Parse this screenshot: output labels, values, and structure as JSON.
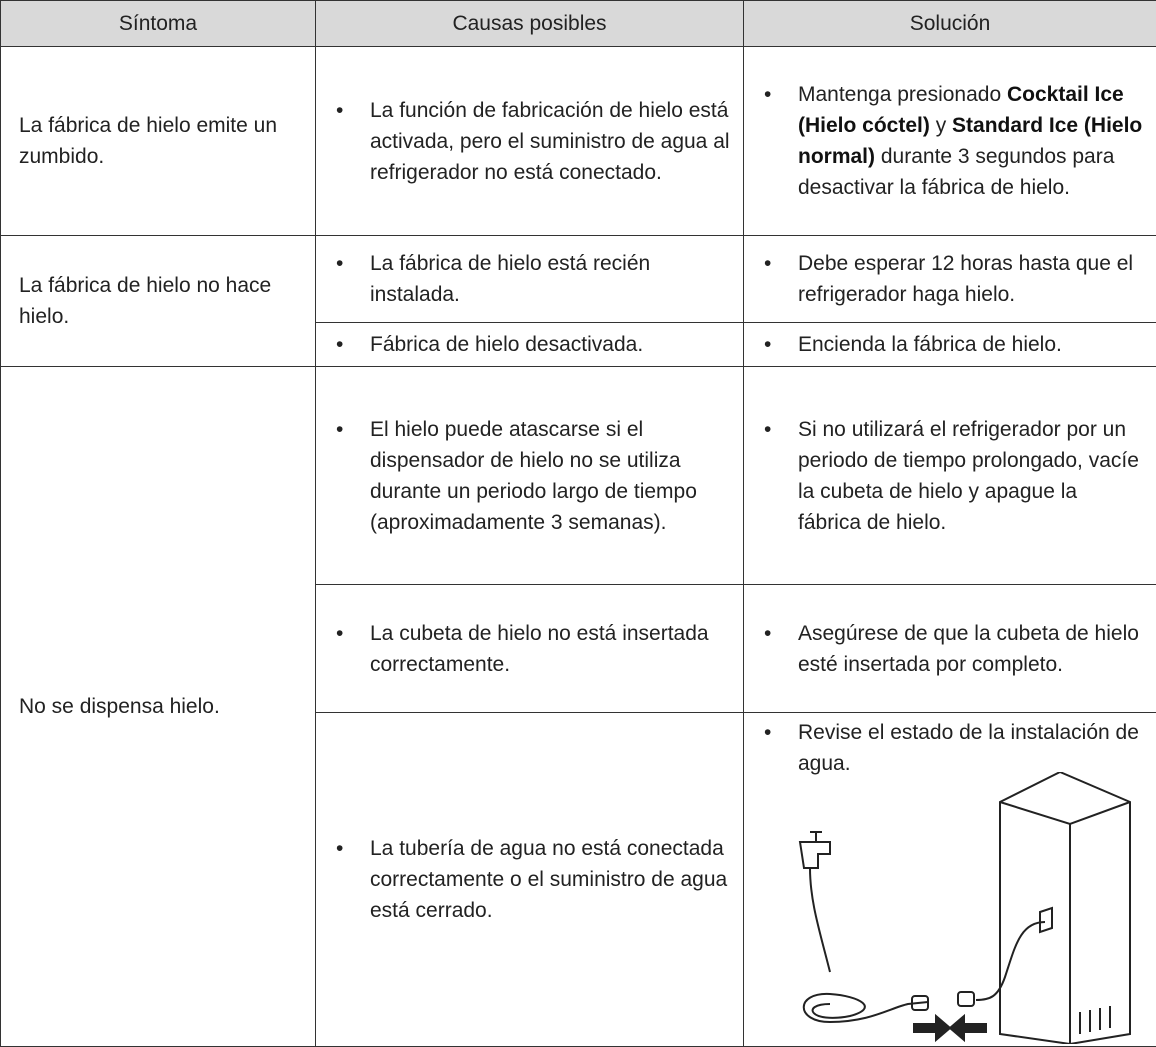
{
  "table": {
    "headers": [
      "Síntoma",
      "Causas posibles",
      "Solución"
    ],
    "rows": [
      {
        "symptom": "La fábrica de hielo emite un zumbido.",
        "items": [
          {
            "cause": "La función de fabricación de hielo está activada, pero el suministro de agua al refrigerador no está conectado.",
            "solution": [
              {
                "text": "Mantenga presionado"
              },
              {
                "text": "Cocktail Ice (Hielo cóctel)",
                "emphasis": true
              },
              {
                "text": "y"
              },
              {
                "text": "Standard Ice (Hielo normal)",
                "emphasis": true
              },
              {
                "text": "durante 3 segundos para desactivar la fábrica de hielo."
              }
            ]
          }
        ]
      },
      {
        "symptom": "La fábrica de hielo no hace hielo.",
        "items": [
          {
            "cause": "La fábrica de hielo está recién instalada.",
            "solution": "Debe esperar 12 horas hasta que el refrigerador haga hielo."
          },
          {
            "cause": "Fábrica de hielo desactivada.",
            "solution": "Encienda la fábrica de hielo."
          }
        ]
      },
      {
        "symptom": "No se dispensa hielo.",
        "items": [
          {
            "cause": "El hielo puede atascarse si el dispensador de hielo no se utiliza durante un periodo largo de tiempo (aproximadamente 3 semanas).",
            "solution": "Si no utilizará el refrigerador por un periodo de tiempo prolongado, vacíe la cubeta de hielo y apague la fábrica de hielo."
          },
          {
            "cause": "La cubeta de hielo no está insertada correctamente.",
            "solution": "Asegúrese de que la cubeta de hielo esté insertada por completo."
          },
          {
            "cause": "La tubería de agua no está conectada correctamente o el suministro de agua está cerrado.",
            "solution": "Revise el estado de la instalación de agua."
          }
        ]
      }
    ]
  }
}
